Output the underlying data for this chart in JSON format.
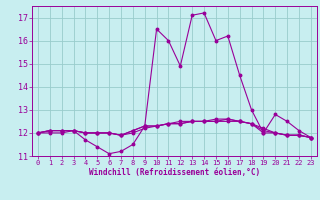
{
  "xlabel": "Windchill (Refroidissement éolien,°C)",
  "background_color": "#c8eef0",
  "grid_color": "#99cccc",
  "line_color": "#990099",
  "text_color": "#990099",
  "xlim": [
    -0.5,
    23.5
  ],
  "ylim": [
    11,
    17.5
  ],
  "yticks": [
    11,
    12,
    13,
    14,
    15,
    16,
    17
  ],
  "xticks": [
    0,
    1,
    2,
    3,
    4,
    5,
    6,
    7,
    8,
    9,
    10,
    11,
    12,
    13,
    14,
    15,
    16,
    17,
    18,
    19,
    20,
    21,
    22,
    23
  ],
  "series": [
    [
      12.0,
      12.0,
      12.0,
      12.1,
      11.7,
      11.4,
      11.1,
      11.2,
      11.5,
      12.3,
      16.5,
      16.0,
      14.9,
      17.1,
      17.2,
      16.0,
      16.2,
      14.5,
      13.0,
      12.0,
      12.8,
      12.5,
      12.1,
      11.8
    ],
    [
      12.0,
      12.1,
      12.1,
      12.1,
      12.0,
      12.0,
      12.0,
      11.9,
      12.0,
      12.2,
      12.3,
      12.4,
      12.4,
      12.5,
      12.5,
      12.5,
      12.5,
      12.5,
      12.4,
      12.0,
      12.0,
      11.9,
      11.9,
      11.8
    ],
    [
      12.0,
      12.1,
      12.1,
      12.1,
      12.0,
      12.0,
      12.0,
      11.9,
      12.1,
      12.3,
      12.3,
      12.4,
      12.4,
      12.5,
      12.5,
      12.6,
      12.6,
      12.5,
      12.4,
      12.2,
      12.0,
      11.9,
      11.9,
      11.8
    ],
    [
      12.0,
      12.1,
      12.1,
      12.1,
      12.0,
      12.0,
      12.0,
      11.9,
      12.1,
      12.3,
      12.3,
      12.4,
      12.5,
      12.5,
      12.5,
      12.5,
      12.6,
      12.5,
      12.4,
      12.1,
      12.0,
      11.9,
      11.9,
      11.8
    ]
  ]
}
